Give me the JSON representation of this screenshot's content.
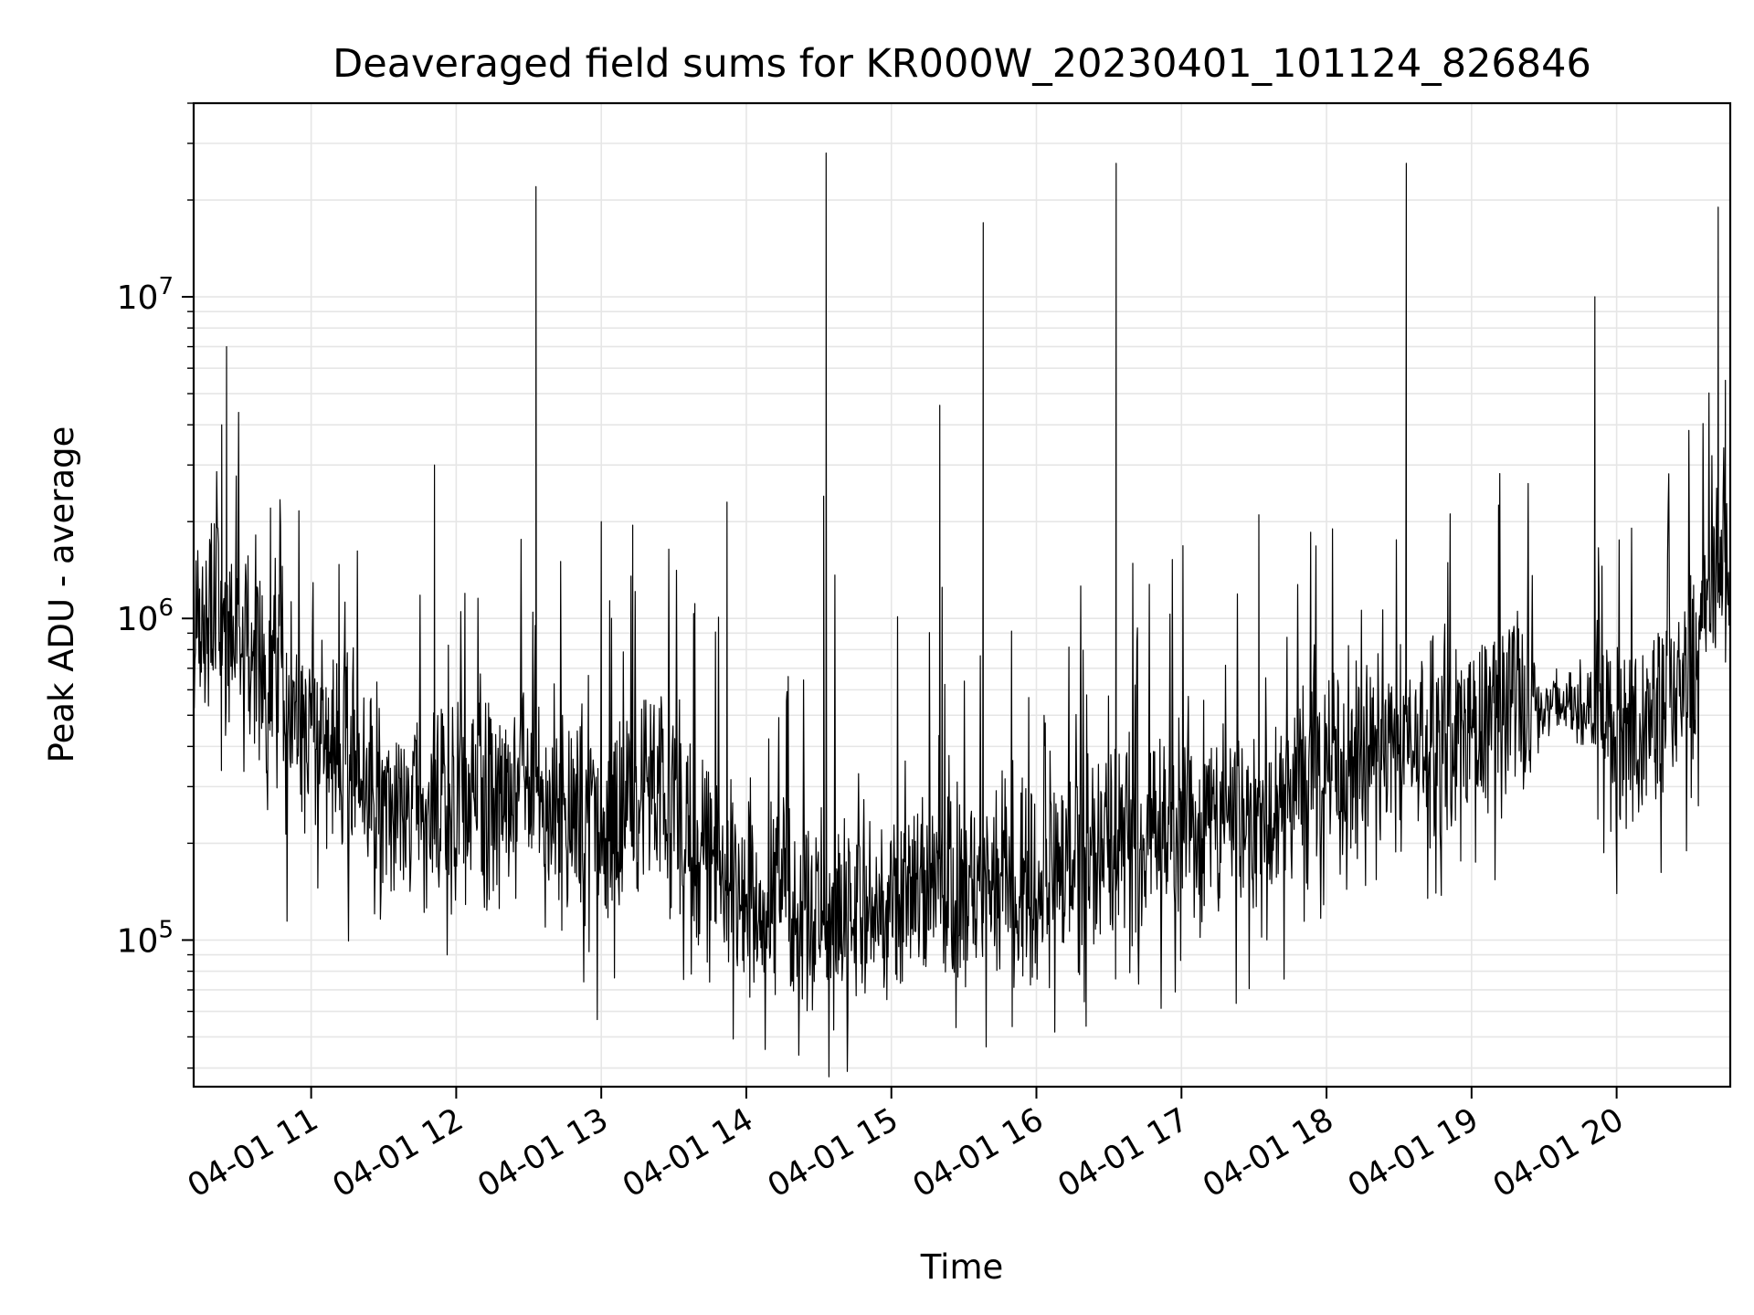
{
  "chart_data": {
    "type": "line",
    "title": "Deaveraged field sums for KR000W_20230401_101124_826846",
    "xlabel": "Time",
    "ylabel": "Peak ADU - average",
    "yscale": "log",
    "grid": true,
    "line_color": "#000000",
    "grid_color": "#e6e6e6",
    "xlim": [
      "2023-04-01 10:11:24",
      "2023-04-01 20:47:00"
    ],
    "ylim": [
      35000,
      40000000
    ],
    "x_ticks": [
      {
        "value": "2023-04-01 11:00",
        "label": "04-01 11"
      },
      {
        "value": "2023-04-01 12:00",
        "label": "04-01 12"
      },
      {
        "value": "2023-04-01 13:00",
        "label": "04-01 13"
      },
      {
        "value": "2023-04-01 14:00",
        "label": "04-01 14"
      },
      {
        "value": "2023-04-01 15:00",
        "label": "04-01 15"
      },
      {
        "value": "2023-04-01 16:00",
        "label": "04-01 16"
      },
      {
        "value": "2023-04-01 17:00",
        "label": "04-01 17"
      },
      {
        "value": "2023-04-01 18:00",
        "label": "04-01 18"
      },
      {
        "value": "2023-04-01 19:00",
        "label": "04-01 19"
      },
      {
        "value": "2023-04-01 20:00",
        "label": "04-01 20"
      }
    ],
    "y_ticks": [
      {
        "value": 100000,
        "base": "10",
        "exp": "5"
      },
      {
        "value": 1000000,
        "base": "10",
        "exp": "6"
      },
      {
        "value": 10000000,
        "base": "10",
        "exp": "7"
      }
    ],
    "series": [
      {
        "baseline": [
          [
            "2023-04-01 10:11:24",
            900000
          ],
          [
            "2023-04-01 10:20",
            1100000
          ],
          [
            "2023-04-01 10:30",
            900000
          ],
          [
            "2023-04-01 10:40",
            650000
          ],
          [
            "2023-04-01 10:50",
            550000
          ],
          [
            "2023-04-01 11:00",
            450000
          ],
          [
            "2023-04-01 11:15",
            380000
          ],
          [
            "2023-04-01 11:30",
            270000
          ],
          [
            "2023-04-01 11:45",
            250000
          ],
          [
            "2023-04-01 12:00",
            260000
          ],
          [
            "2023-04-01 12:20",
            300000
          ],
          [
            "2023-04-01 12:40",
            280000
          ],
          [
            "2023-04-01 13:00",
            230000
          ],
          [
            "2023-04-01 13:20",
            280000
          ],
          [
            "2023-04-01 13:40",
            200000
          ],
          [
            "2023-04-01 14:00",
            140000
          ],
          [
            "2023-04-01 14:30",
            130000
          ],
          [
            "2023-04-01 15:00",
            125000
          ],
          [
            "2023-04-01 15:30",
            150000
          ],
          [
            "2023-04-01 16:00",
            160000
          ],
          [
            "2023-04-01 16:30",
            210000
          ],
          [
            "2023-04-01 17:00",
            230000
          ],
          [
            "2023-04-01 17:30",
            250000
          ],
          [
            "2023-04-01 18:00",
            330000
          ],
          [
            "2023-04-01 18:30",
            400000
          ],
          [
            "2023-04-01 19:00",
            450000
          ],
          [
            "2023-04-01 19:15",
            550000
          ],
          [
            "2023-04-01 19:30",
            520000
          ],
          [
            "2023-04-01 19:45",
            550000
          ],
          [
            "2023-04-01 20:00",
            450000
          ],
          [
            "2023-04-01 20:15",
            450000
          ],
          [
            "2023-04-01 20:30",
            700000
          ],
          [
            "2023-04-01 20:47",
            1500000
          ]
        ],
        "spikes": [
          [
            "2023-04-01 10:25",
            7000000
          ],
          [
            "2023-04-01 10:23",
            4000000
          ],
          [
            "2023-04-01 11:51",
            3000000
          ],
          [
            "2023-04-01 12:33",
            22000000
          ],
          [
            "2023-04-01 13:00",
            2000000
          ],
          [
            "2023-04-01 13:13",
            1950000
          ],
          [
            "2023-04-01 13:52",
            2300000
          ],
          [
            "2023-04-01 14:33",
            28000000
          ],
          [
            "2023-04-01 14:32",
            2400000
          ],
          [
            "2023-04-01 15:21",
            1250000
          ],
          [
            "2023-04-01 15:20",
            4600000
          ],
          [
            "2023-04-01 15:38",
            17000000
          ],
          [
            "2023-04-01 16:33",
            26000000
          ],
          [
            "2023-04-01 17:32",
            2100000
          ],
          [
            "2023-04-01 18:33",
            26000000
          ],
          [
            "2023-04-01 19:51",
            10000000
          ],
          [
            "2023-04-01 20:42",
            19000000
          ],
          [
            "2023-04-01 20:45",
            5500000
          ]
        ]
      }
    ]
  }
}
